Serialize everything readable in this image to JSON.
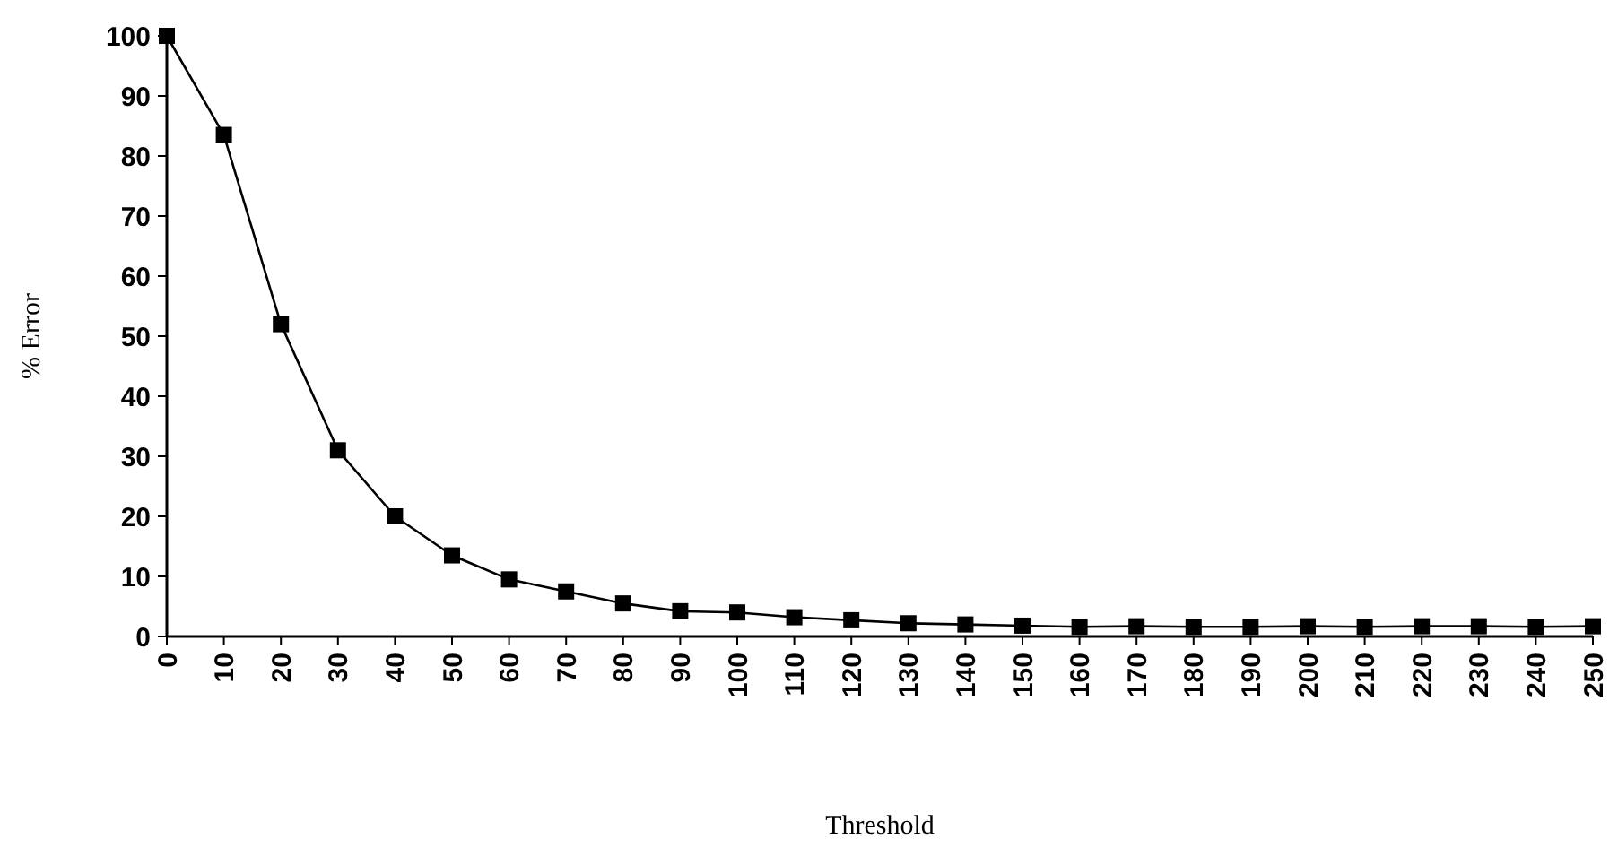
{
  "chart_data": {
    "type": "line",
    "xlabel": "Threshold",
    "ylabel": "% Error",
    "categories": [
      "0",
      "10",
      "20",
      "30",
      "40",
      "50",
      "60",
      "70",
      "80",
      "90",
      "100",
      "110",
      "120",
      "130",
      "140",
      "150",
      "160",
      "170",
      "180",
      "190",
      "200",
      "210",
      "220",
      "230",
      "240",
      "250"
    ],
    "series": [
      {
        "color": "#000000",
        "values": [
          100,
          83.5,
          52,
          31,
          20,
          13.5,
          9.5,
          7.5,
          5.5,
          4.2,
          4,
          3.2,
          2.7,
          2.2,
          2,
          1.8,
          1.6,
          1.7,
          1.6,
          1.6,
          1.7,
          1.6,
          1.7,
          1.7,
          1.6,
          1.7
        ]
      }
    ],
    "ylim": [
      0,
      100
    ],
    "yticks": [
      0,
      10,
      20,
      30,
      40,
      50,
      60,
      70,
      80,
      90,
      100
    ],
    "grid": false,
    "marker": "square",
    "line_style": "solid"
  }
}
